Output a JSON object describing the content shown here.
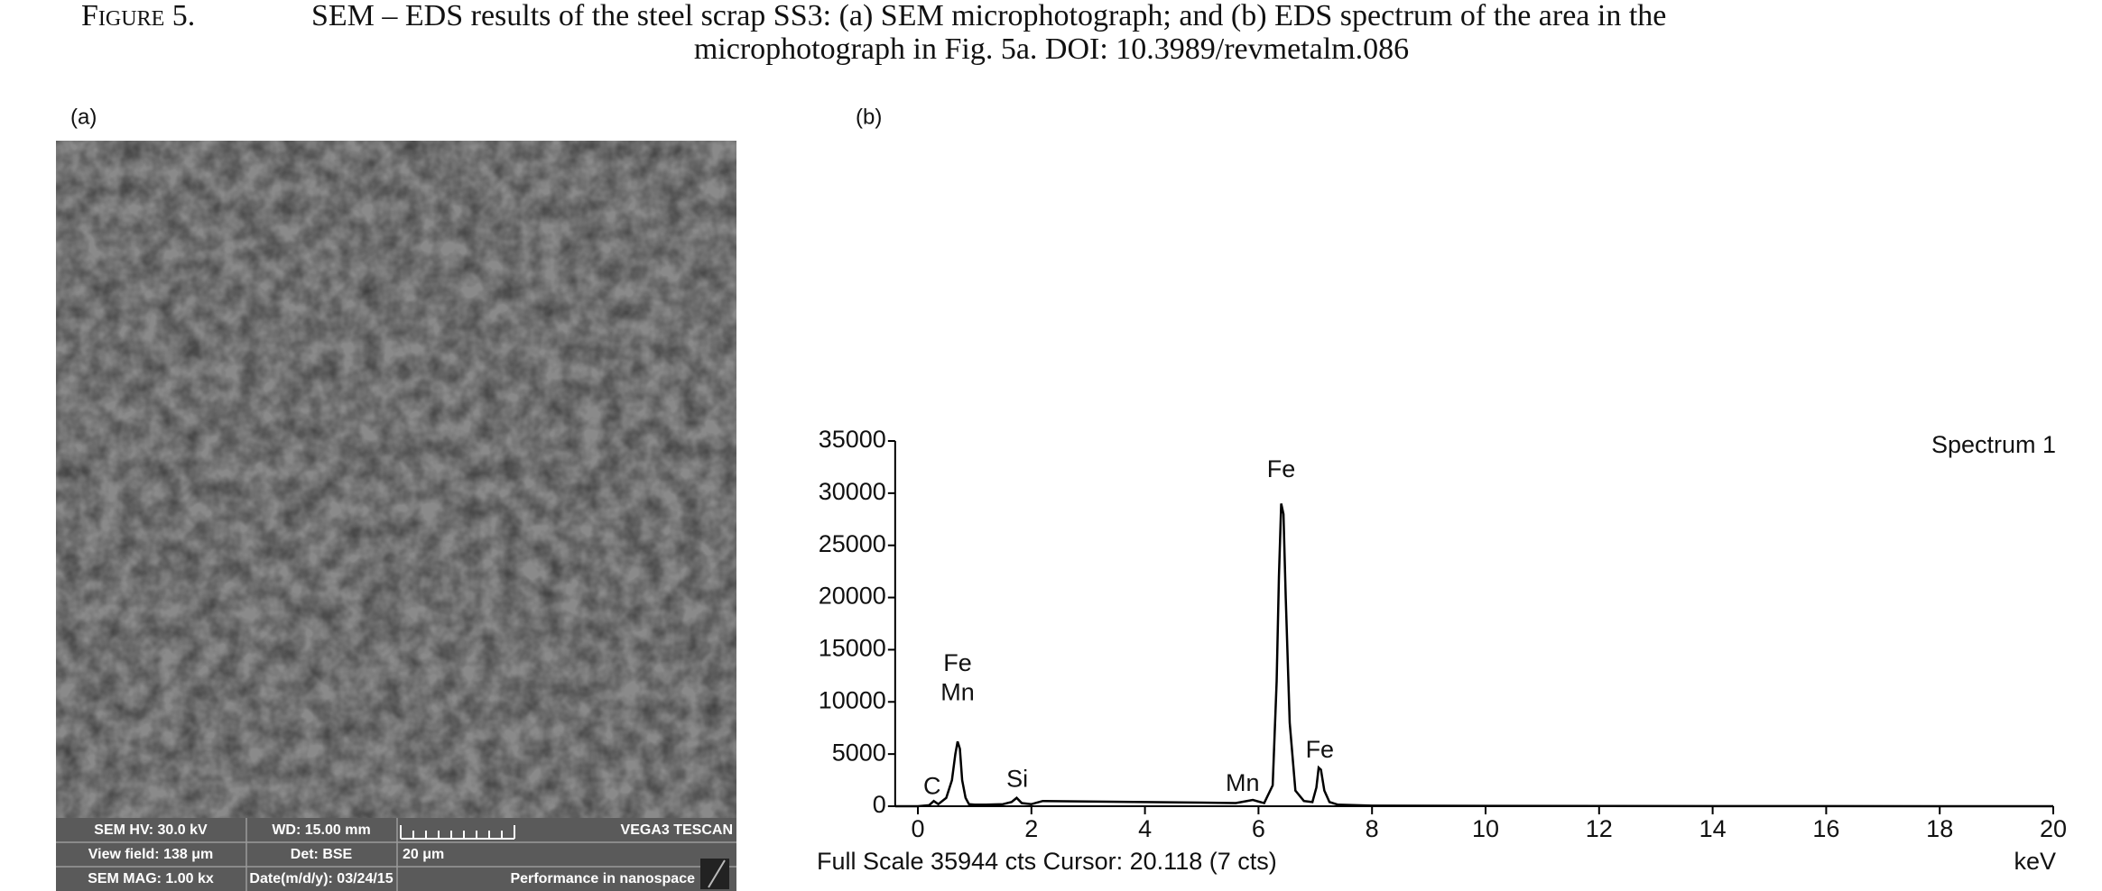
{
  "caption": {
    "label": "Figure 5.",
    "lines": [
      "SEM – EDS results of the steel scrap SS3: (a) SEM microphotograph; and (b) EDS spectrum of the area in the",
      "microphotograph in Fig. 5a. DOI: 10.3989/revmetalm.086"
    ]
  },
  "panel_a": {
    "label": "(a)",
    "info_bar": {
      "rows": [
        [
          "SEM HV: 30.0 kV",
          "WD: 15.00 mm",
          "VEGA3 TESCAN"
        ],
        [
          "View field: 138 μm",
          "Det: BSE",
          "20 μm"
        ],
        [
          "SEM MAG: 1.00 kx",
          "Date(m/d/y): 03/24/15",
          "Performance in nanospace"
        ]
      ]
    }
  },
  "chart_data": {
    "type": "line",
    "panel_label": "(b)",
    "x": [
      -0.4,
      0.0,
      0.2,
      0.28,
      0.36,
      0.5,
      0.6,
      0.66,
      0.7,
      0.74,
      0.78,
      0.84,
      0.9,
      1.0,
      1.2,
      1.5,
      1.65,
      1.74,
      1.83,
      2.0,
      2.2,
      3.0,
      4.0,
      5.0,
      5.6,
      5.9,
      6.1,
      6.25,
      6.32,
      6.36,
      6.4,
      6.44,
      6.48,
      6.55,
      6.65,
      6.8,
      6.95,
      7.02,
      7.06,
      7.1,
      7.16,
      7.25,
      7.4,
      8.0,
      10,
      12,
      14,
      16,
      18,
      20
    ],
    "series": [
      {
        "name": "Spectrum 1",
        "color": "#000000",
        "values": [
          0,
          0,
          100,
          500,
          200,
          800,
          2500,
          5000,
          6200,
          5500,
          2500,
          800,
          200,
          150,
          150,
          200,
          400,
          800,
          300,
          200,
          500,
          450,
          400,
          350,
          300,
          600,
          300,
          2000,
          12000,
          22000,
          29000,
          28000,
          20000,
          8000,
          1500,
          500,
          400,
          1800,
          3700,
          3500,
          1500,
          400,
          150,
          50,
          30,
          20,
          10,
          10,
          5,
          5
        ]
      }
    ],
    "xlim": [
      -0.4,
      20
    ],
    "ylim": [
      0,
      35000
    ],
    "xticks": [
      0,
      2,
      4,
      6,
      8,
      10,
      12,
      14,
      16,
      18,
      20
    ],
    "yticks": [
      0,
      5000,
      10000,
      15000,
      20000,
      25000,
      30000,
      35000
    ],
    "x_label": "keV",
    "footer": "Full Scale 35944 cts Cursor: 20.118 (7 cts)",
    "annotations": [
      {
        "text": "C",
        "x": 0.25,
        "y": 1800
      },
      {
        "text": "Fe",
        "x": 0.7,
        "y": 13600
      },
      {
        "text": "Mn",
        "x": 0.7,
        "y": 10760
      },
      {
        "text": "Si",
        "x": 1.75,
        "y": 2460
      },
      {
        "text": "Mn",
        "x": 5.72,
        "y": 2070
      },
      {
        "text": "Fe",
        "x": 6.4,
        "y": 32150
      },
      {
        "text": "Fe",
        "x": 7.08,
        "y": 5300
      }
    ]
  }
}
